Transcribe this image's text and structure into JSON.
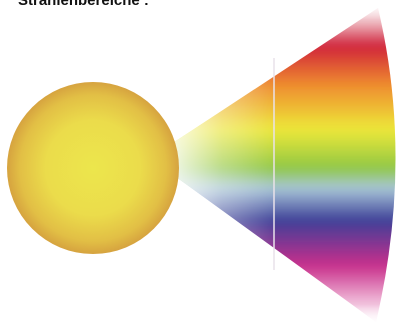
{
  "title": "Strahlenbereiche :",
  "colors": {
    "sun_center": "#ece64c",
    "sun_edge": "#d6a33f",
    "band_red": "#d0203a",
    "band_orange": "#ee8a2e",
    "band_yellow": "#ede839",
    "band_green": "#8fc744",
    "band_blue": "#3c3f98",
    "band_magenta": "#c92d8b",
    "divider": "#e9e2ea"
  },
  "bands": [
    {
      "name": "red",
      "color": "#d0203a"
    },
    {
      "name": "orange",
      "color": "#ee8a2e"
    },
    {
      "name": "yellow",
      "color": "#ede839"
    },
    {
      "name": "green",
      "color": "#8fc744"
    },
    {
      "name": "blue",
      "color": "#3c3f98"
    },
    {
      "name": "magenta",
      "color": "#c92d8b"
    }
  ]
}
